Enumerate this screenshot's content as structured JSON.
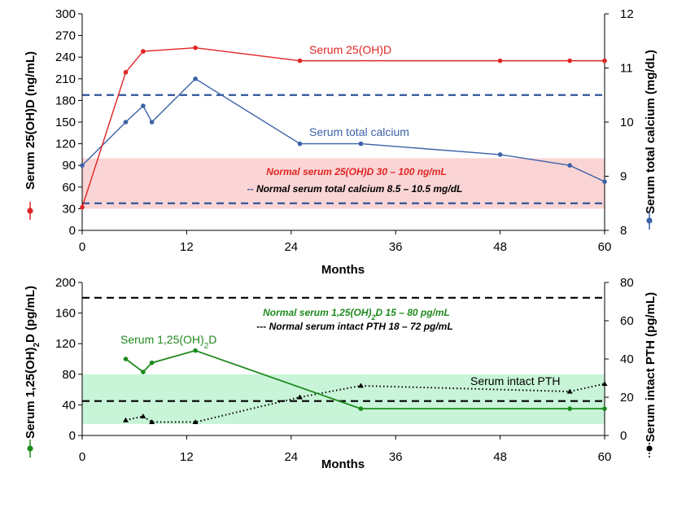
{
  "colors": {
    "red": "#e02424",
    "blue": "#3c62a8",
    "navy_dash": "#2f5597",
    "green": "#1e8a1e",
    "pink_band": "#fbd5d5",
    "green_band": "#c8f5d8",
    "black": "#000000"
  },
  "chart_data": [
    {
      "type": "line",
      "xlabel": "Months",
      "x_ticks": [
        "0",
        "12",
        "24",
        "36",
        "48",
        "60"
      ],
      "xlim": [
        0,
        60
      ],
      "ylabel_left": "Serum 25(OH)D (ng/mL)",
      "ylim_left": [
        0,
        300
      ],
      "y_ticks_left": [
        "0",
        "30",
        "60",
        "90",
        "120",
        "150",
        "180",
        "210",
        "240",
        "270",
        "300"
      ],
      "ylabel_right": "Serum total calcium (mg/dL)",
      "ylim_right": [
        8,
        12
      ],
      "y_ticks_right": [
        "8",
        "9",
        "10",
        "11",
        "12"
      ],
      "normal_band_left": [
        30,
        100
      ],
      "reference_lines_right": [
        8.5,
        10.5
      ],
      "notes": {
        "red_note": "Normal serum  25(OH)D 30 – 100 ng/mL",
        "dash_prefix": "--",
        "dash_note": "Normal serum total calcium 8.5 – 10.5 mg/dL"
      },
      "series": [
        {
          "name": "Serum 25(OH)D",
          "axis": "left",
          "x": [
            0,
            5,
            7,
            13,
            25,
            48,
            56,
            60
          ],
          "values": [
            32,
            219,
            248,
            253,
            235,
            235,
            235,
            235
          ]
        },
        {
          "name": "Serum total calcium",
          "axis": "right",
          "x": [
            0,
            5,
            7,
            8,
            13,
            25,
            32,
            48,
            56,
            60
          ],
          "values": [
            9.2,
            10.0,
            10.3,
            10.0,
            10.8,
            9.6,
            9.6,
            9.4,
            9.2,
            8.9
          ]
        }
      ]
    },
    {
      "type": "line",
      "xlabel": "Months",
      "x_ticks": [
        "0",
        "12",
        "24",
        "36",
        "48",
        "60"
      ],
      "xlim": [
        0,
        60
      ],
      "ylabel_left_parts": [
        "Serum 1,25(OH)",
        "2",
        "D (pg/mL)"
      ],
      "ylim_left": [
        0,
        200
      ],
      "y_ticks_left": [
        "0",
        "40",
        "80",
        "120",
        "160",
        "200"
      ],
      "ylabel_right": "Serum intact PTH (pg/mL)",
      "ylim_right": [
        0,
        80
      ],
      "y_ticks_right": [
        "0",
        "20",
        "40",
        "60",
        "80"
      ],
      "normal_band_left": [
        15,
        80
      ],
      "reference_lines_right": [
        18,
        72
      ],
      "notes": {
        "green_note_parts": [
          "Normal serum  1,25(OH)",
          "2",
          "D 15 – 80 pg/mL"
        ],
        "dash_prefix": "---",
        "dash_note": "Normal serum intact PTH 18 – 72 pg/mL"
      },
      "series": [
        {
          "name": "Serum 1,25(OH)2D",
          "label_parts": [
            "Serum 1,25(OH)",
            "2",
            "D"
          ],
          "axis": "left",
          "x": [
            5,
            7,
            8,
            13,
            32,
            56,
            60
          ],
          "values": [
            100,
            83,
            95,
            111,
            35,
            35,
            35
          ]
        },
        {
          "name": "Serum intact PTH",
          "axis": "right",
          "x": [
            5,
            7,
            8,
            13,
            25,
            32,
            56,
            60
          ],
          "values": [
            8,
            10,
            7,
            7,
            20,
            26,
            23,
            27
          ]
        }
      ]
    }
  ]
}
